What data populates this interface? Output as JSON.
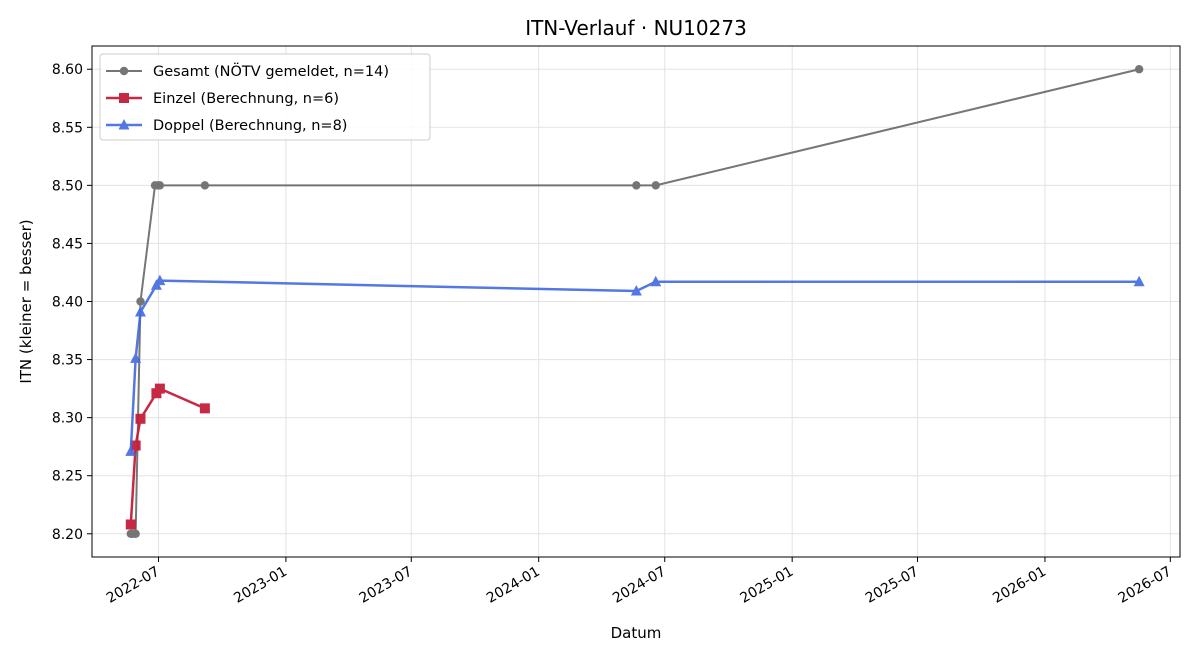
{
  "chart_data": {
    "type": "line",
    "title": "ITN-Verlauf · NU10273",
    "xlabel": "Datum",
    "ylabel": "ITN  (kleiner = besser)",
    "x_axis": "date",
    "xlim": [
      "2022-03-27",
      "2026-07-15"
    ],
    "ylim": [
      8.18,
      8.62
    ],
    "x_ticks": [
      "2022-07",
      "2023-01",
      "2023-07",
      "2024-01",
      "2024-07",
      "2025-01",
      "2025-07",
      "2026-01",
      "2026-07"
    ],
    "y_ticks": [
      "8.20",
      "8.25",
      "8.30",
      "8.35",
      "8.40",
      "8.45",
      "8.50",
      "8.55",
      "8.60"
    ],
    "grid": true,
    "legend_position": "top-left",
    "series": [
      {
        "name": "Gesamt (NÖTV gemeldet, n=14)",
        "color": "#555555",
        "marker": "circle",
        "points": [
          {
            "x": "2022-05-22",
            "y": 8.2
          },
          {
            "x": "2022-05-25",
            "y": 8.2
          },
          {
            "x": "2022-05-29",
            "y": 8.2
          },
          {
            "x": "2022-06-05",
            "y": 8.4
          },
          {
            "x": "2022-06-26",
            "y": 8.5
          },
          {
            "x": "2022-06-30",
            "y": 8.5
          },
          {
            "x": "2022-07-03",
            "y": 8.5
          },
          {
            "x": "2022-09-06",
            "y": 8.5
          },
          {
            "x": "2024-05-21",
            "y": 8.5
          },
          {
            "x": "2024-06-18",
            "y": 8.5
          },
          {
            "x": "2026-05-17",
            "y": 8.6
          }
        ]
      },
      {
        "name": "Einzel (Berechnung, n=6)",
        "color": "#c41e3a",
        "marker": "square",
        "points": [
          {
            "x": "2022-05-22",
            "y": 8.208
          },
          {
            "x": "2022-05-29",
            "y": 8.276
          },
          {
            "x": "2022-06-05",
            "y": 8.299
          },
          {
            "x": "2022-06-28",
            "y": 8.321
          },
          {
            "x": "2022-07-03",
            "y": 8.325
          },
          {
            "x": "2022-09-06",
            "y": 8.308
          }
        ]
      },
      {
        "name": "Doppel (Berechnung, n=8)",
        "color": "#4169e1",
        "marker": "triangle",
        "points": [
          {
            "x": "2022-05-22",
            "y": 8.271
          },
          {
            "x": "2022-05-29",
            "y": 8.351
          },
          {
            "x": "2022-06-05",
            "y": 8.391
          },
          {
            "x": "2022-06-28",
            "y": 8.414
          },
          {
            "x": "2022-07-03",
            "y": 8.418
          },
          {
            "x": "2024-05-21",
            "y": 8.409
          },
          {
            "x": "2024-06-18",
            "y": 8.417
          },
          {
            "x": "2026-05-17",
            "y": 8.417
          }
        ]
      }
    ]
  }
}
